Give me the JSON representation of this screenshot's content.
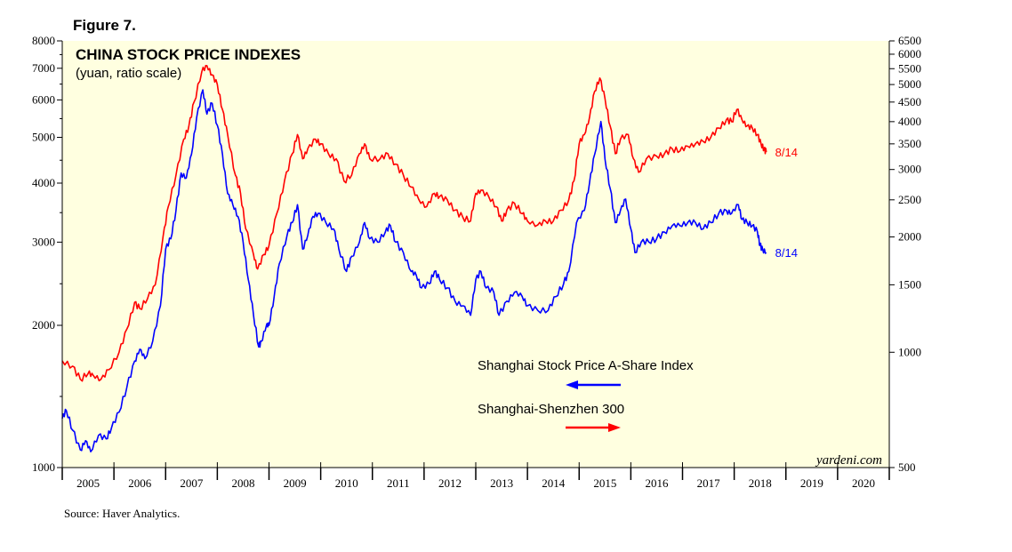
{
  "figure_label": "Figure 7.",
  "source": "Source: Haver Analytics.",
  "credit": "yardeni.com",
  "colors": {
    "plot_bg": "#ffffe0",
    "red": "#ff0000",
    "blue": "#0000ff"
  },
  "chart_data": {
    "type": "line",
    "title": "CHINA STOCK PRICE INDEXES",
    "subtitle": "(yuan, ratio scale)",
    "x_range": [
      2005,
      2021
    ],
    "x_tick_labels": [
      "2005",
      "2006",
      "2007",
      "2008",
      "2009",
      "2010",
      "2011",
      "2012",
      "2013",
      "2014",
      "2015",
      "2016",
      "2017",
      "2018",
      "2019",
      "2020"
    ],
    "y_left": {
      "scale": "log",
      "range": [
        1000,
        8000
      ],
      "ticks": [
        1000,
        2000,
        3000,
        4000,
        5000,
        6000,
        7000,
        8000
      ],
      "labels": [
        "1000",
        "2000",
        "3000",
        "4000",
        "5000",
        "6000",
        "7000",
        "8000"
      ]
    },
    "y_right": {
      "scale": "log",
      "range": [
        500,
        6500
      ],
      "ticks": [
        500,
        1000,
        1500,
        2000,
        2500,
        3000,
        3500,
        4000,
        4500,
        5000,
        5500,
        6000,
        6500
      ],
      "labels": [
        "500",
        "1000",
        "1500",
        "2000",
        "2500",
        "3000",
        "3500",
        "4000",
        "4500",
        "5000",
        "5500",
        "6000",
        "6500"
      ]
    },
    "series": [
      {
        "name": "Shanghai Stock Price A-Share Index",
        "axis": "left",
        "color": "#0000ff",
        "end_label": "8/14",
        "legend_arrow": "left",
        "points": [
          [
            2005.0,
            1270
          ],
          [
            2005.08,
            1320
          ],
          [
            2005.2,
            1200
          ],
          [
            2005.35,
            1090
          ],
          [
            2005.45,
            1140
          ],
          [
            2005.55,
            1080
          ],
          [
            2005.7,
            1170
          ],
          [
            2005.85,
            1150
          ],
          [
            2005.95,
            1210
          ],
          [
            2006.1,
            1310
          ],
          [
            2006.25,
            1480
          ],
          [
            2006.4,
            1680
          ],
          [
            2006.5,
            1780
          ],
          [
            2006.6,
            1700
          ],
          [
            2006.75,
            1850
          ],
          [
            2006.9,
            2200
          ],
          [
            2007.0,
            2900
          ],
          [
            2007.1,
            3050
          ],
          [
            2007.2,
            3500
          ],
          [
            2007.3,
            4200
          ],
          [
            2007.4,
            4100
          ],
          [
            2007.5,
            4600
          ],
          [
            2007.6,
            5500
          ],
          [
            2007.72,
            6300
          ],
          [
            2007.8,
            5600
          ],
          [
            2007.9,
            5900
          ],
          [
            2008.0,
            5300
          ],
          [
            2008.1,
            4600
          ],
          [
            2008.2,
            3800
          ],
          [
            2008.3,
            3600
          ],
          [
            2008.4,
            3400
          ],
          [
            2008.5,
            3000
          ],
          [
            2008.6,
            2500
          ],
          [
            2008.7,
            2100
          ],
          [
            2008.8,
            1800
          ],
          [
            2008.85,
            1850
          ],
          [
            2008.95,
            2000
          ],
          [
            2009.0,
            2000
          ],
          [
            2009.1,
            2300
          ],
          [
            2009.2,
            2700
          ],
          [
            2009.35,
            3100
          ],
          [
            2009.45,
            3300
          ],
          [
            2009.55,
            3600
          ],
          [
            2009.65,
            2900
          ],
          [
            2009.75,
            3100
          ],
          [
            2009.85,
            3400
          ],
          [
            2009.95,
            3450
          ],
          [
            2010.1,
            3300
          ],
          [
            2010.25,
            3200
          ],
          [
            2010.35,
            2900
          ],
          [
            2010.5,
            2600
          ],
          [
            2010.6,
            2800
          ],
          [
            2010.75,
            3000
          ],
          [
            2010.85,
            3300
          ],
          [
            2010.95,
            3050
          ],
          [
            2011.1,
            3000
          ],
          [
            2011.25,
            3150
          ],
          [
            2011.35,
            3250
          ],
          [
            2011.45,
            3000
          ],
          [
            2011.6,
            2850
          ],
          [
            2011.75,
            2600
          ],
          [
            2011.85,
            2550
          ],
          [
            2011.95,
            2400
          ],
          [
            2012.1,
            2450
          ],
          [
            2012.2,
            2600
          ],
          [
            2012.3,
            2500
          ],
          [
            2012.45,
            2400
          ],
          [
            2012.6,
            2250
          ],
          [
            2012.75,
            2200
          ],
          [
            2012.9,
            2100
          ],
          [
            2013.0,
            2500
          ],
          [
            2013.1,
            2600
          ],
          [
            2013.2,
            2400
          ],
          [
            2013.35,
            2350
          ],
          [
            2013.45,
            2100
          ],
          [
            2013.6,
            2250
          ],
          [
            2013.75,
            2350
          ],
          [
            2013.9,
            2300
          ],
          [
            2014.0,
            2200
          ],
          [
            2014.2,
            2150
          ],
          [
            2014.4,
            2150
          ],
          [
            2014.55,
            2300
          ],
          [
            2014.7,
            2450
          ],
          [
            2014.8,
            2600
          ],
          [
            2014.95,
            3300
          ],
          [
            2015.1,
            3500
          ],
          [
            2015.2,
            4000
          ],
          [
            2015.3,
            4600
          ],
          [
            2015.42,
            5400
          ],
          [
            2015.5,
            4500
          ],
          [
            2015.6,
            3900
          ],
          [
            2015.7,
            3300
          ],
          [
            2015.8,
            3500
          ],
          [
            2015.9,
            3700
          ],
          [
            2016.0,
            3200
          ],
          [
            2016.08,
            2850
          ],
          [
            2016.2,
            3000
          ],
          [
            2016.35,
            3000
          ],
          [
            2016.5,
            3050
          ],
          [
            2016.65,
            3150
          ],
          [
            2016.8,
            3250
          ],
          [
            2016.95,
            3250
          ],
          [
            2017.1,
            3300
          ],
          [
            2017.25,
            3300
          ],
          [
            2017.4,
            3200
          ],
          [
            2017.55,
            3300
          ],
          [
            2017.7,
            3450
          ],
          [
            2017.85,
            3500
          ],
          [
            2017.95,
            3450
          ],
          [
            2018.08,
            3600
          ],
          [
            2018.15,
            3350
          ],
          [
            2018.25,
            3300
          ],
          [
            2018.35,
            3250
          ],
          [
            2018.45,
            3150
          ],
          [
            2018.5,
            2950
          ],
          [
            2018.55,
            2900
          ],
          [
            2018.62,
            2850
          ]
        ]
      },
      {
        "name": "Shanghai-Shenzhen 300",
        "axis": "right",
        "color": "#ff0000",
        "end_label": "8/14",
        "legend_arrow": "right",
        "points": [
          [
            2005.0,
            950
          ],
          [
            2005.2,
            920
          ],
          [
            2005.35,
            850
          ],
          [
            2005.5,
            880
          ],
          [
            2005.6,
            870
          ],
          [
            2005.75,
            850
          ],
          [
            2005.9,
            900
          ],
          [
            2006.1,
            1000
          ],
          [
            2006.25,
            1150
          ],
          [
            2006.4,
            1350
          ],
          [
            2006.5,
            1300
          ],
          [
            2006.65,
            1380
          ],
          [
            2006.8,
            1500
          ],
          [
            2006.95,
            2000
          ],
          [
            2007.05,
            2400
          ],
          [
            2007.2,
            2900
          ],
          [
            2007.35,
            3600
          ],
          [
            2007.45,
            3900
          ],
          [
            2007.55,
            4500
          ],
          [
            2007.7,
            5400
          ],
          [
            2007.8,
            5600
          ],
          [
            2007.9,
            5300
          ],
          [
            2008.0,
            5000
          ],
          [
            2008.1,
            4300
          ],
          [
            2008.2,
            3700
          ],
          [
            2008.35,
            2900
          ],
          [
            2008.45,
            2600
          ],
          [
            2008.55,
            2100
          ],
          [
            2008.7,
            1800
          ],
          [
            2008.78,
            1650
          ],
          [
            2008.9,
            1800
          ],
          [
            2009.0,
            1900
          ],
          [
            2009.15,
            2300
          ],
          [
            2009.3,
            2800
          ],
          [
            2009.45,
            3300
          ],
          [
            2009.55,
            3700
          ],
          [
            2009.65,
            3200
          ],
          [
            2009.75,
            3400
          ],
          [
            2009.9,
            3600
          ],
          [
            2010.0,
            3500
          ],
          [
            2010.15,
            3300
          ],
          [
            2010.3,
            3200
          ],
          [
            2010.45,
            2800
          ],
          [
            2010.6,
            2900
          ],
          [
            2010.75,
            3300
          ],
          [
            2010.85,
            3500
          ],
          [
            2010.95,
            3200
          ],
          [
            2011.15,
            3200
          ],
          [
            2011.3,
            3300
          ],
          [
            2011.45,
            3100
          ],
          [
            2011.6,
            2900
          ],
          [
            2011.75,
            2700
          ],
          [
            2011.9,
            2500
          ],
          [
            2012.05,
            2400
          ],
          [
            2012.2,
            2600
          ],
          [
            2012.3,
            2550
          ],
          [
            2012.45,
            2500
          ],
          [
            2012.6,
            2350
          ],
          [
            2012.75,
            2250
          ],
          [
            2012.9,
            2200
          ],
          [
            2013.0,
            2600
          ],
          [
            2013.1,
            2650
          ],
          [
            2013.25,
            2550
          ],
          [
            2013.4,
            2400
          ],
          [
            2013.5,
            2200
          ],
          [
            2013.6,
            2350
          ],
          [
            2013.75,
            2450
          ],
          [
            2013.9,
            2300
          ],
          [
            2014.0,
            2200
          ],
          [
            2014.2,
            2150
          ],
          [
            2014.35,
            2200
          ],
          [
            2014.5,
            2200
          ],
          [
            2014.65,
            2350
          ],
          [
            2014.8,
            2500
          ],
          [
            2014.9,
            2800
          ],
          [
            2015.0,
            3500
          ],
          [
            2015.1,
            3700
          ],
          [
            2015.2,
            4100
          ],
          [
            2015.3,
            4800
          ],
          [
            2015.4,
            5200
          ],
          [
            2015.5,
            4600
          ],
          [
            2015.6,
            3900
          ],
          [
            2015.7,
            3300
          ],
          [
            2015.8,
            3600
          ],
          [
            2015.95,
            3700
          ],
          [
            2016.05,
            3200
          ],
          [
            2016.15,
            2950
          ],
          [
            2016.3,
            3200
          ],
          [
            2016.5,
            3250
          ],
          [
            2016.65,
            3300
          ],
          [
            2016.8,
            3400
          ],
          [
            2016.95,
            3350
          ],
          [
            2017.1,
            3450
          ],
          [
            2017.25,
            3500
          ],
          [
            2017.4,
            3550
          ],
          [
            2017.55,
            3650
          ],
          [
            2017.7,
            3850
          ],
          [
            2017.85,
            4050
          ],
          [
            2017.95,
            4000
          ],
          [
            2018.05,
            4300
          ],
          [
            2018.15,
            4050
          ],
          [
            2018.25,
            3900
          ],
          [
            2018.35,
            3850
          ],
          [
            2018.45,
            3700
          ],
          [
            2018.52,
            3500
          ],
          [
            2018.58,
            3400
          ],
          [
            2018.62,
            3330
          ]
        ]
      }
    ]
  }
}
